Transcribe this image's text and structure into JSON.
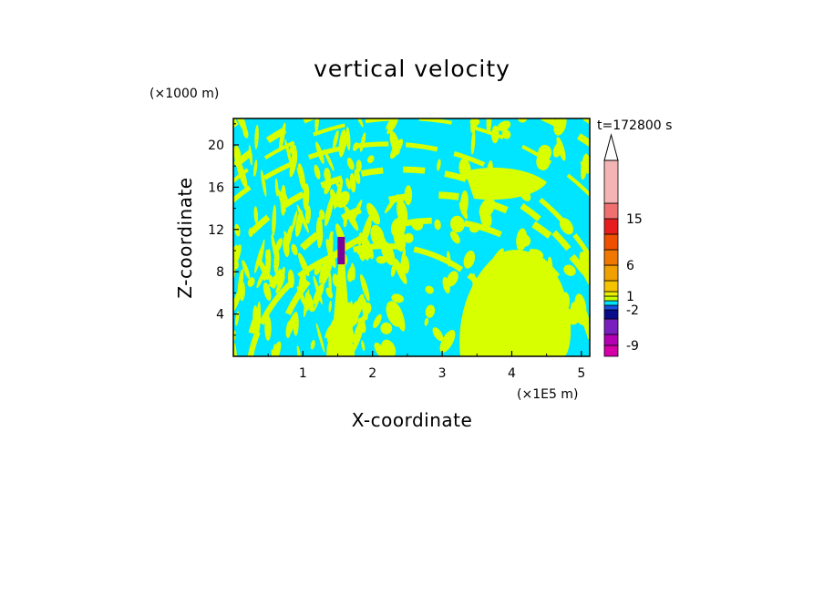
{
  "chart_data": {
    "type": "heatmap",
    "title": "vertical velocity",
    "xlabel": "X-coordinate",
    "ylabel": "Z-coordinate",
    "x_unit_label": "(×1E5 m)",
    "y_unit_label": "(×1000 m)",
    "time_label": "t=172800 s",
    "xlim": [
      0,
      5.12
    ],
    "ylim": [
      0,
      22.5
    ],
    "x_ticks": [
      1,
      2,
      3,
      4,
      5
    ],
    "x_tick_labels": [
      "1",
      "2",
      "3",
      "4",
      "5"
    ],
    "y_ticks": [
      4,
      8,
      12,
      16,
      20
    ],
    "y_tick_labels": [
      "4",
      "8",
      "12",
      "16",
      "20"
    ],
    "field_colors": {
      "negative_small": "#00e5ff",
      "positive_small": "#d8ff00",
      "strong_negative": "#7a0099"
    },
    "colorbar": {
      "levels": [
        {
          "color": "#d600a8"
        },
        {
          "color": "#b300b3"
        },
        {
          "color": "#7a1fbf"
        },
        {
          "color": "#0a0a8c"
        },
        {
          "color": "#1a4fe0"
        },
        {
          "color": "#00e5ff"
        },
        {
          "color": "#c8ff00"
        },
        {
          "color": "#e8f000"
        },
        {
          "color": "#f5c400"
        },
        {
          "color": "#f0a000"
        },
        {
          "color": "#f07800"
        },
        {
          "color": "#ee5000"
        },
        {
          "color": "#e81e1e"
        },
        {
          "color": "#f07070"
        },
        {
          "color": "#f5b4b4"
        }
      ],
      "tick_labels": [
        "-9",
        "-2",
        "1",
        "6",
        "15"
      ],
      "top_color": "#ffffff"
    }
  }
}
